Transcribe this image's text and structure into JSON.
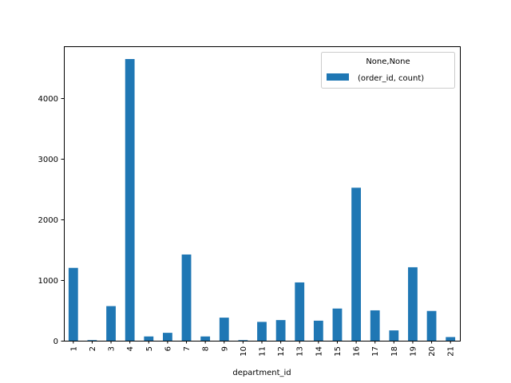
{
  "chart_data": {
    "type": "bar",
    "categories": [
      "1",
      "2",
      "3",
      "4",
      "5",
      "6",
      "7",
      "8",
      "9",
      "10",
      "11",
      "12",
      "13",
      "14",
      "15",
      "16",
      "17",
      "18",
      "19",
      "20",
      "21"
    ],
    "series": [
      {
        "name": "(order_id, count)",
        "values": [
          1200,
          10,
          570,
          4640,
          70,
          130,
          1420,
          70,
          380,
          10,
          310,
          340,
          960,
          330,
          530,
          2520,
          500,
          170,
          1210,
          490,
          60
        ]
      }
    ],
    "xlabel": "department_id",
    "ylabel": "",
    "ylim": [
      0,
      4850
    ],
    "yticks": [
      0,
      1000,
      2000,
      3000,
      4000
    ],
    "grid": false,
    "legend": {
      "title": "None,None",
      "placement": "top-right"
    },
    "colors": {
      "bar": "#1f77b4"
    }
  }
}
